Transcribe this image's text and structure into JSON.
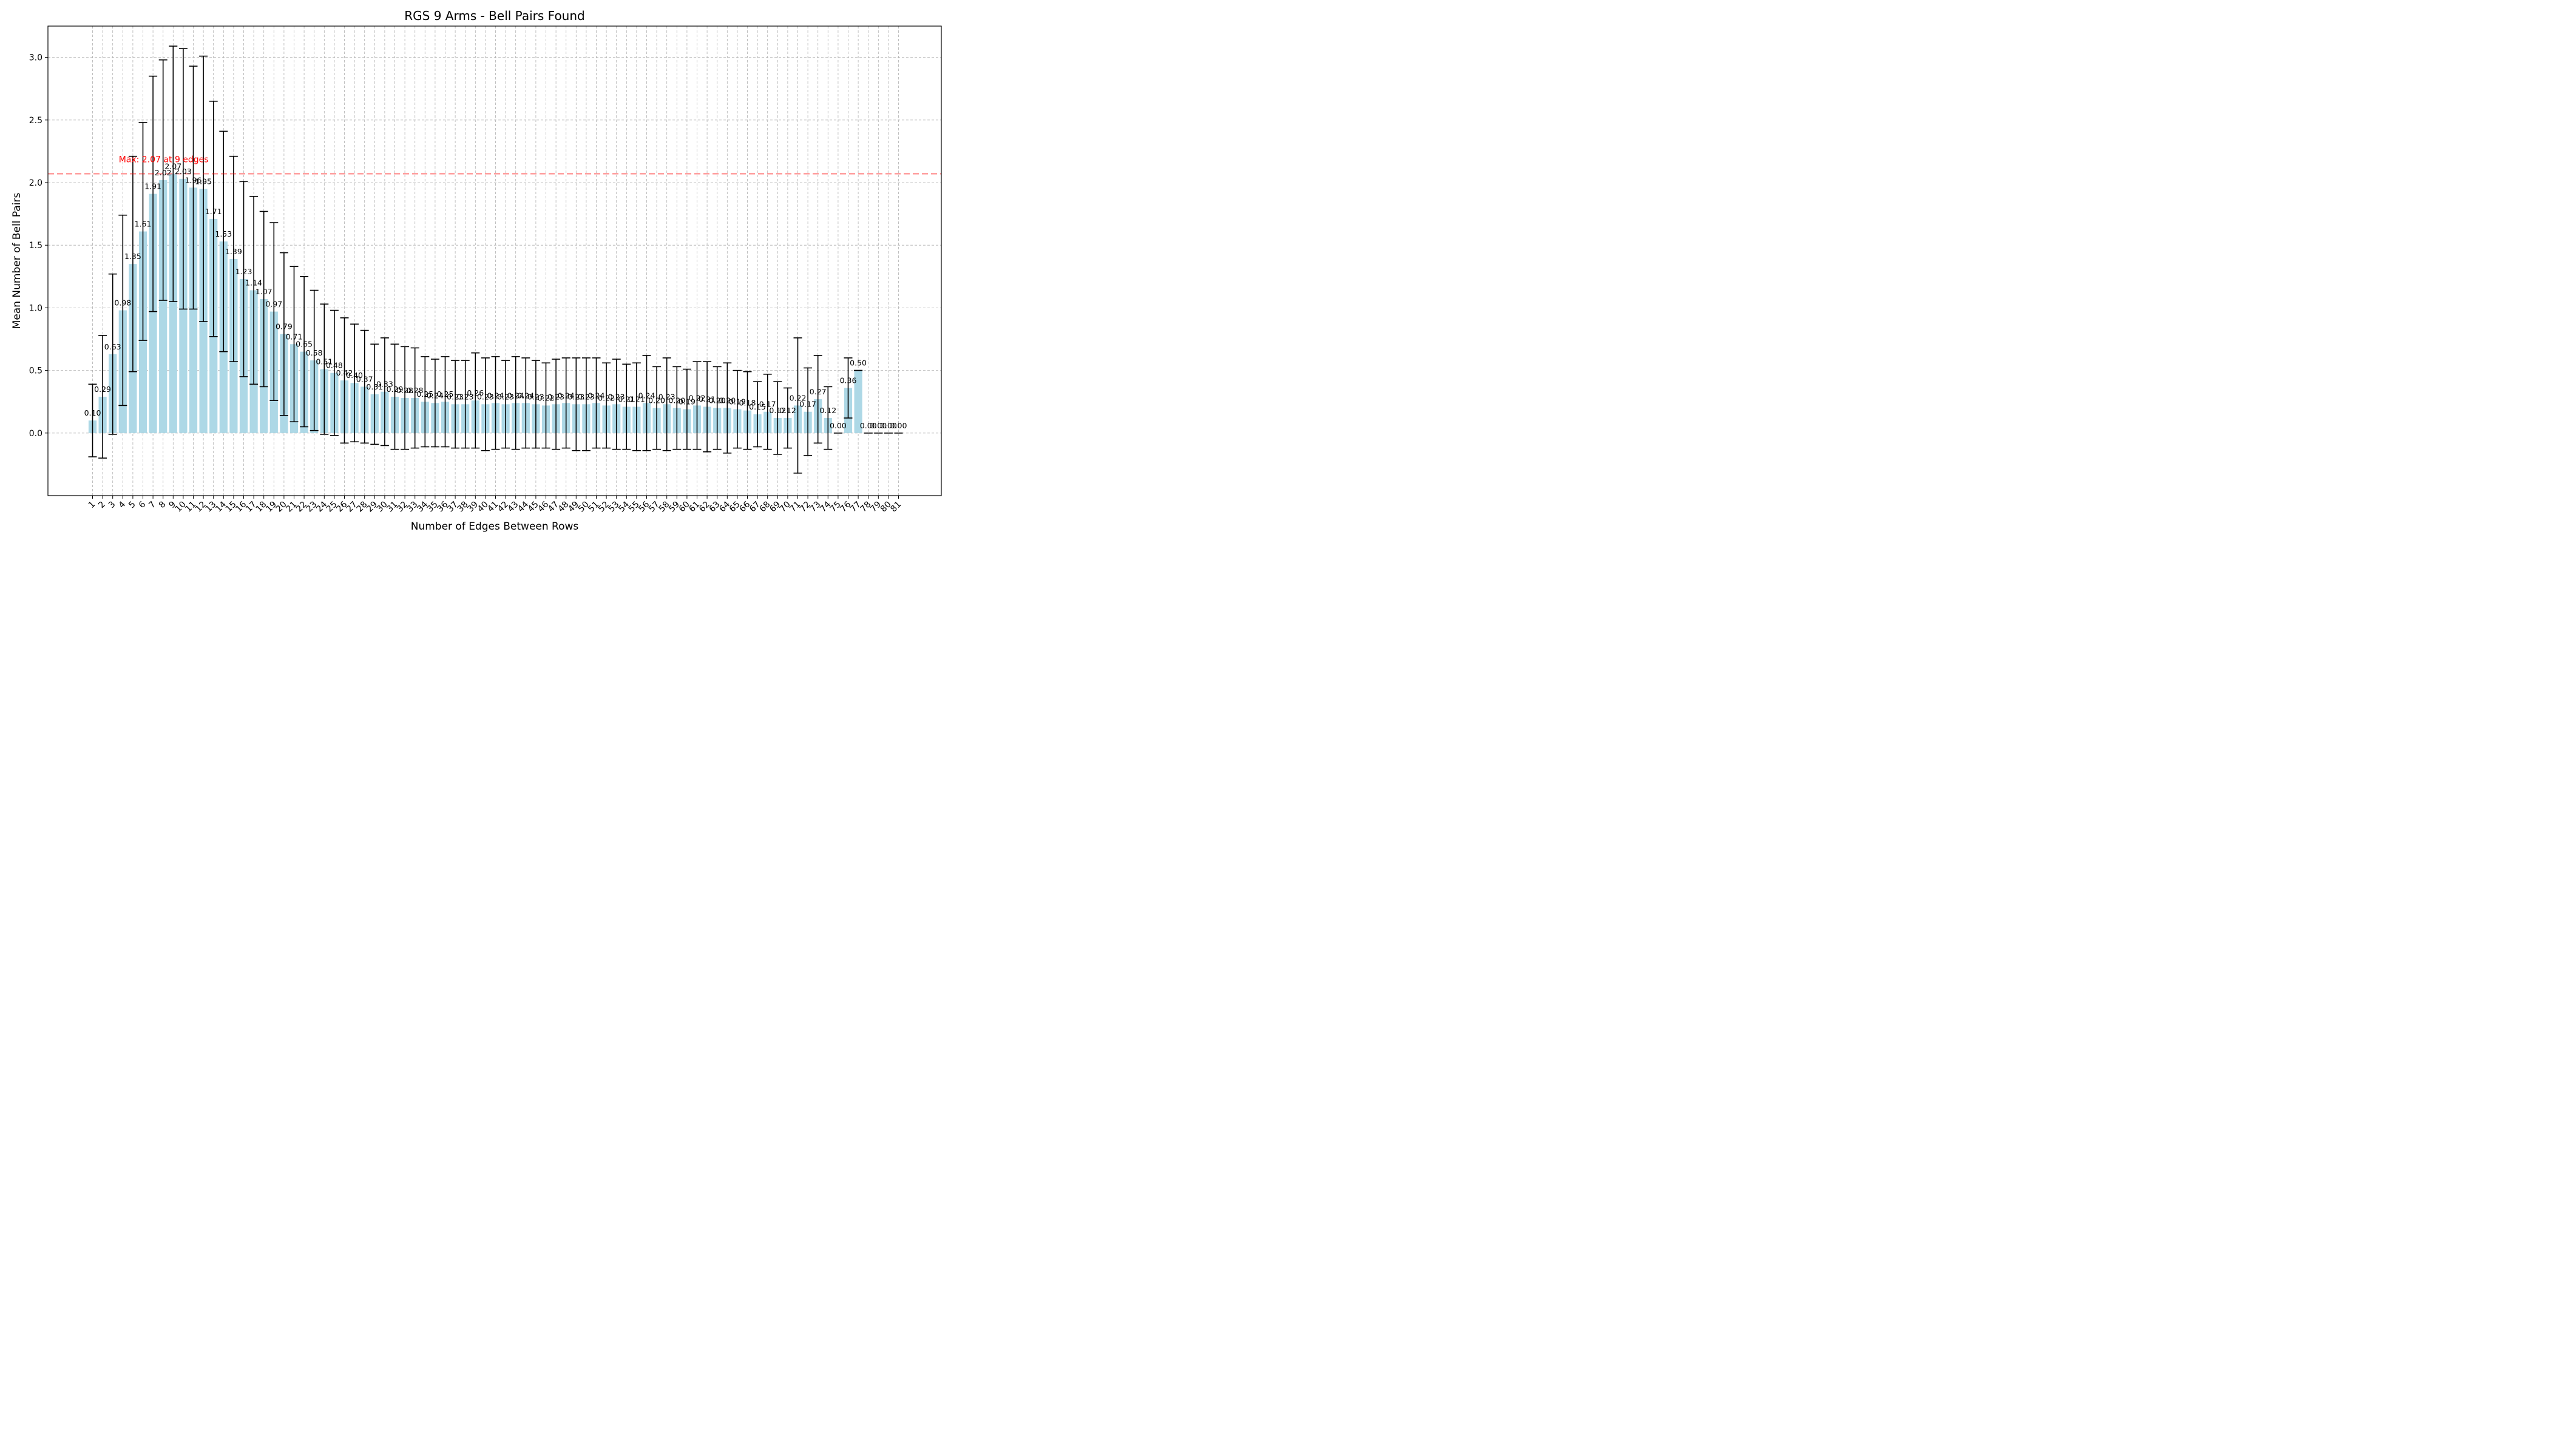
{
  "chart_data": {
    "type": "bar",
    "title": "RGS 9 Arms - Bell Pairs Found",
    "xlabel": "Number of Edges Between Rows",
    "ylabel": "Mean Number of Bell Pairs",
    "ylim": [
      -0.5,
      3.25
    ],
    "yticks": [
      "0.0",
      "0.5",
      "1.0",
      "1.5",
      "2.0",
      "2.5",
      "3.0"
    ],
    "grid": true,
    "bar_color": "#add8e6",
    "errorbar_color": "#000000",
    "categories": [
      "1",
      "2",
      "3",
      "4",
      "5",
      "6",
      "7",
      "8",
      "9",
      "10",
      "11",
      "12",
      "13",
      "14",
      "15",
      "16",
      "17",
      "18",
      "19",
      "20",
      "21",
      "22",
      "23",
      "24",
      "25",
      "26",
      "27",
      "28",
      "29",
      "30",
      "31",
      "32",
      "33",
      "34",
      "35",
      "36",
      "37",
      "38",
      "39",
      "40",
      "41",
      "42",
      "43",
      "44",
      "45",
      "46",
      "47",
      "48",
      "49",
      "50",
      "51",
      "52",
      "53",
      "54",
      "55",
      "56",
      "57",
      "58",
      "59",
      "60",
      "61",
      "62",
      "63",
      "64",
      "65",
      "66",
      "67",
      "68",
      "69",
      "70",
      "71",
      "72",
      "73",
      "74",
      "75",
      "76",
      "77",
      "78",
      "79",
      "80",
      "81"
    ],
    "values": [
      0.1,
      0.29,
      0.63,
      0.98,
      1.35,
      1.61,
      1.91,
      2.02,
      2.07,
      2.03,
      1.96,
      1.95,
      1.71,
      1.53,
      1.39,
      1.23,
      1.14,
      1.07,
      0.97,
      0.79,
      0.71,
      0.65,
      0.58,
      0.51,
      0.48,
      0.42,
      0.4,
      0.37,
      0.31,
      0.33,
      0.29,
      0.28,
      0.28,
      0.25,
      0.24,
      0.25,
      0.23,
      0.23,
      0.26,
      0.23,
      0.24,
      0.23,
      0.24,
      0.24,
      0.23,
      0.22,
      0.23,
      0.24,
      0.23,
      0.23,
      0.24,
      0.22,
      0.23,
      0.21,
      0.21,
      0.24,
      0.2,
      0.23,
      0.2,
      0.19,
      0.22,
      0.21,
      0.2,
      0.2,
      0.19,
      0.18,
      0.15,
      0.17,
      0.12,
      0.12,
      0.22,
      0.17,
      0.27,
      0.12,
      0.0,
      0.36,
      0.5,
      0.0,
      0.0,
      0.0,
      0.0
    ],
    "errors": [
      0.29,
      0.49,
      0.64,
      0.76,
      0.86,
      0.87,
      0.94,
      0.96,
      1.02,
      1.04,
      0.97,
      1.06,
      0.94,
      0.88,
      0.82,
      0.78,
      0.75,
      0.7,
      0.71,
      0.65,
      0.62,
      0.6,
      0.56,
      0.52,
      0.5,
      0.5,
      0.47,
      0.45,
      0.4,
      0.43,
      0.42,
      0.41,
      0.4,
      0.36,
      0.35,
      0.36,
      0.35,
      0.35,
      0.38,
      0.37,
      0.37,
      0.35,
      0.37,
      0.36,
      0.35,
      0.34,
      0.36,
      0.36,
      0.37,
      0.37,
      0.36,
      0.34,
      0.36,
      0.34,
      0.35,
      0.38,
      0.33,
      0.37,
      0.33,
      0.32,
      0.35,
      0.36,
      0.33,
      0.36,
      0.31,
      0.31,
      0.26,
      0.3,
      0.29,
      0.24,
      0.54,
      0.35,
      0.35,
      0.25,
      0.0,
      0.24,
      0.0,
      0.0,
      0.0,
      0.0,
      0.0
    ],
    "bar_labels": [
      "0.10",
      "0.29",
      "0.63",
      "0.98",
      "1.35",
      "1.61",
      "1.91",
      "2.02",
      "2.07",
      "2.03",
      "1.96",
      "1.95",
      "1.71",
      "1.53",
      "1.39",
      "1.23",
      "1.14",
      "1.07",
      "0.97",
      "0.79",
      "0.71",
      "0.65",
      "0.58",
      "0.51",
      "0.48",
      "0.42",
      "0.40",
      "0.37",
      "0.31",
      "0.33",
      "0.29",
      "0.28",
      "0.28",
      "0.25",
      "0.24",
      "0.25",
      "0.23",
      "0.23",
      "0.26",
      "0.23",
      "0.24",
      "0.23",
      "0.24",
      "0.24",
      "0.23",
      "0.22",
      "0.23",
      "0.24",
      "0.23",
      "0.23",
      "0.24",
      "0.22",
      "0.23",
      "0.21",
      "0.21",
      "0.24",
      "0.20",
      "0.23",
      "0.20",
      "0.19",
      "0.22",
      "0.21",
      "0.20",
      "0.20",
      "0.19",
      "0.18",
      "0.15",
      "0.17",
      "0.12",
      "0.12",
      "0.22",
      "0.17",
      "0.27",
      "0.12",
      "0.00",
      "0.36",
      "0.50",
      "0.00",
      "0.00",
      "0.00",
      "0.00"
    ],
    "max_line": {
      "value": 2.07,
      "label": "Max: 2.07 at 9 edges",
      "color": "#ff0000"
    }
  }
}
